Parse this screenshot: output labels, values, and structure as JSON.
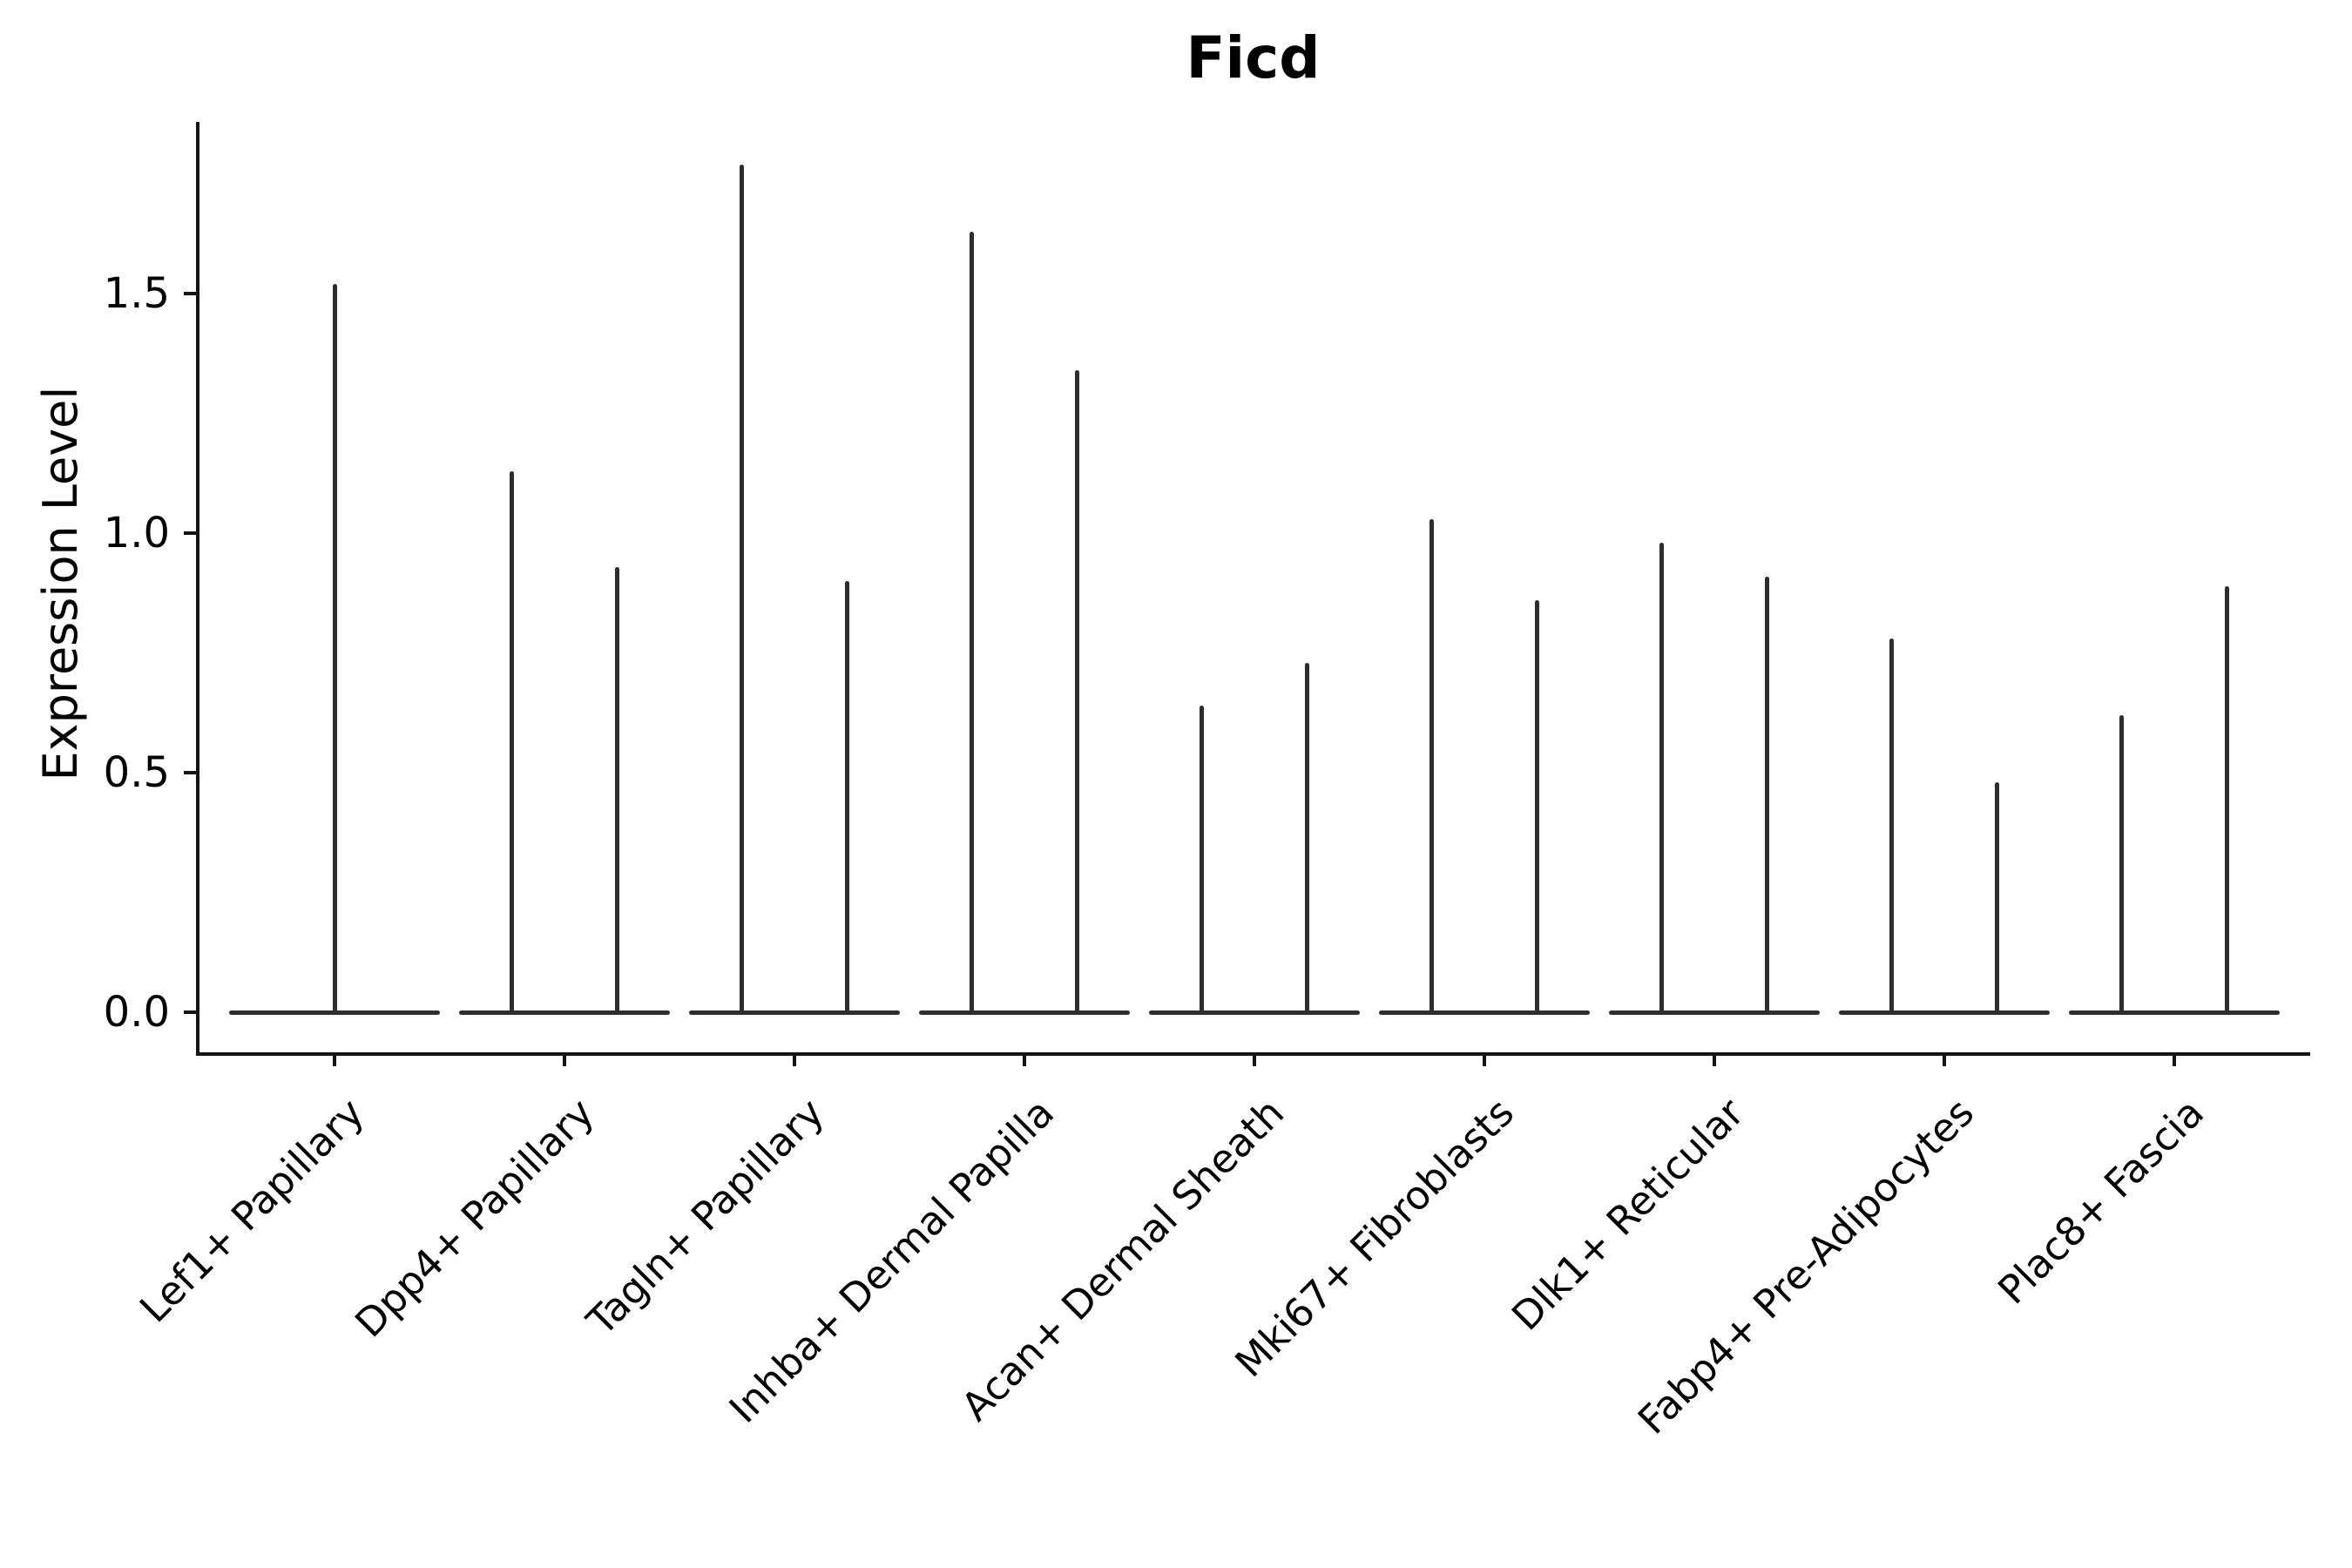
{
  "title": "Ficd",
  "chart_data": {
    "type": "violin",
    "title": "Ficd",
    "xlabel": "",
    "ylabel": "Expression Level",
    "ylim": [
      -0.09,
      1.86
    ],
    "yticks": [
      0.0,
      0.5,
      1.0,
      1.5
    ],
    "grid": false,
    "legend": "none",
    "categories": [
      "Lef1+ Papillary",
      "Dpp4+ Papillary",
      "Tagln+ Papillary",
      "Inhba+ Dermal Papilla",
      "Acan+ Dermal Sheath",
      "Mki67+ Fibroblasts",
      "Dlk1+ Reticular",
      "Fabp4+ Pre-Adipocytes",
      "Plac8+ Fascia"
    ],
    "violins": [
      {
        "category": "Lef1+ Papillary",
        "spikes": [
          {
            "offset": 0,
            "max": 1.52
          }
        ]
      },
      {
        "category": "Dpp4+ Papillary",
        "spikes": [
          {
            "offset": -0.23,
            "max": 1.13
          },
          {
            "offset": 0.23,
            "max": 0.93
          }
        ]
      },
      {
        "category": "Tagln+ Papillary",
        "spikes": [
          {
            "offset": -0.23,
            "max": 1.77
          },
          {
            "offset": 0.23,
            "max": 0.9
          }
        ]
      },
      {
        "category": "Inhba+ Dermal Papilla",
        "spikes": [
          {
            "offset": -0.23,
            "max": 1.63
          },
          {
            "offset": 0.23,
            "max": 1.34
          }
        ]
      },
      {
        "category": "Acan+ Dermal Sheath",
        "spikes": [
          {
            "offset": -0.23,
            "max": 0.64
          },
          {
            "offset": 0.23,
            "max": 0.73
          }
        ]
      },
      {
        "category": "Mki67+ Fibroblasts",
        "spikes": [
          {
            "offset": -0.23,
            "max": 1.03
          },
          {
            "offset": 0.23,
            "max": 0.86
          }
        ]
      },
      {
        "category": "Dlk1+ Reticular",
        "spikes": [
          {
            "offset": -0.23,
            "max": 0.98
          },
          {
            "offset": 0.23,
            "max": 0.91
          }
        ]
      },
      {
        "category": "Fabp4+ Pre-Adipocytes",
        "spikes": [
          {
            "offset": -0.23,
            "max": 0.78
          },
          {
            "offset": 0.23,
            "max": 0.48
          }
        ]
      },
      {
        "category": "Plac8+ Fascia",
        "spikes": [
          {
            "offset": -0.23,
            "max": 0.62
          },
          {
            "offset": 0.23,
            "max": 0.89
          }
        ]
      }
    ],
    "baseline_value": 0.0,
    "colors": {
      "violin": "#2d2d2d",
      "spine": "#141414",
      "text": "#000000",
      "background": "#ffffff"
    }
  }
}
